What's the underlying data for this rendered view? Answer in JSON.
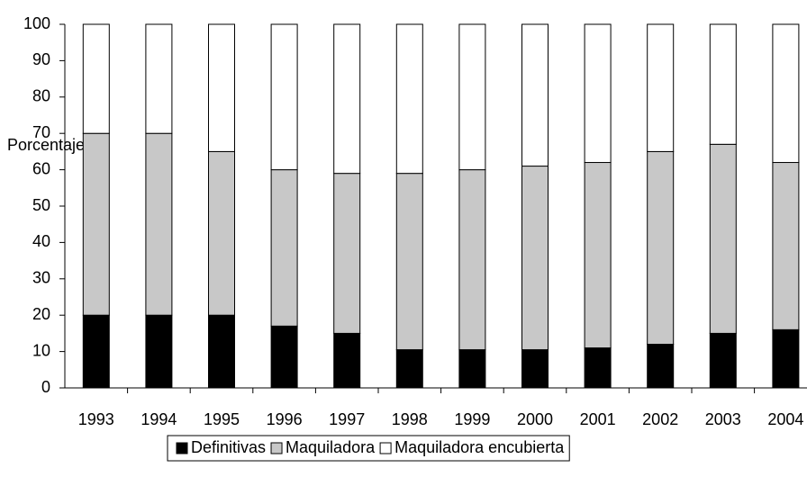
{
  "chart_data": {
    "type": "stacked_bar",
    "ylabel": "Porcentaje",
    "categories": [
      "1993",
      "1994",
      "1995",
      "1996",
      "1997",
      "1998",
      "1999",
      "2000",
      "2001",
      "2002",
      "2003",
      "2004"
    ],
    "series": [
      {
        "name": "Definitivas",
        "color": "#000000",
        "values": [
          20,
          20,
          20,
          17,
          15,
          10.5,
          10.5,
          10.5,
          11,
          12,
          15,
          16
        ]
      },
      {
        "name": "Maquiladora",
        "color": "#c8c8c8",
        "values": [
          50,
          50,
          45,
          43,
          44,
          48.5,
          49.5,
          50.5,
          51,
          53,
          52,
          46
        ]
      },
      {
        "name": "Maquiladora encubierta",
        "color": "#ffffff",
        "values": [
          30,
          30,
          35,
          40,
          41,
          41,
          40,
          39,
          38,
          35,
          33,
          38
        ]
      }
    ],
    "ylim": [
      0,
      100
    ],
    "yticks": [
      0,
      10,
      20,
      30,
      40,
      50,
      60,
      70,
      80,
      90,
      100
    ],
    "legend": "bottom"
  }
}
